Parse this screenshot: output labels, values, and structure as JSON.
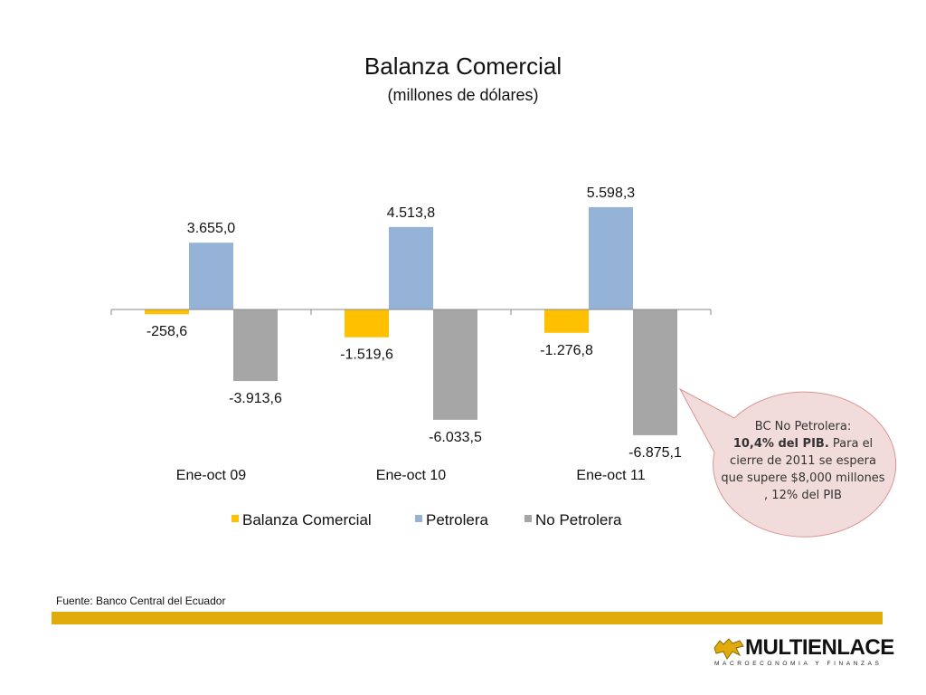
{
  "chart_data": {
    "type": "bar",
    "title": "Balanza Comercial",
    "subtitle": "(millones de dólares)",
    "categories": [
      "Ene-oct 09",
      "Ene-oct 10",
      "Ene-oct 11"
    ],
    "series": [
      {
        "name": "Balanza Comercial",
        "color": "#ffc000",
        "values": [
          -258.6,
          -1519.6,
          -1276.8
        ],
        "labels": [
          "-258,6",
          "-1.519,6",
          "-1.276,8"
        ]
      },
      {
        "name": "Petrolera",
        "color": "#95b3d7",
        "values": [
          3655.0,
          4513.8,
          5598.3
        ],
        "labels": [
          "3.655,0",
          "4.513,8",
          "5.598,3"
        ]
      },
      {
        "name": "No Petrolera",
        "color": "#a6a6a6",
        "values": [
          -3913.6,
          -6033.5,
          -6875.1
        ],
        "labels": [
          "-3.913,6",
          "-6.033,5",
          "-6.875,1"
        ]
      }
    ],
    "legend_position": "bottom",
    "grid": false
  },
  "callout": {
    "line1": "BC No Petrolera:",
    "bold": "10,4% del PIB.",
    "rest1": " Para el cierre de  2011 se espera que supere $8,000 millones , 12% del PIB"
  },
  "source": "Fuente: Banco Central del Ecuador",
  "logo": {
    "name": "MULTIENLACE",
    "tagline": "MACROECONOMIA Y FINANZAS"
  },
  "colors": {
    "accent": "#e2ab0c",
    "callout_fill": "#f2dcdb",
    "callout_border": "#d99594"
  }
}
